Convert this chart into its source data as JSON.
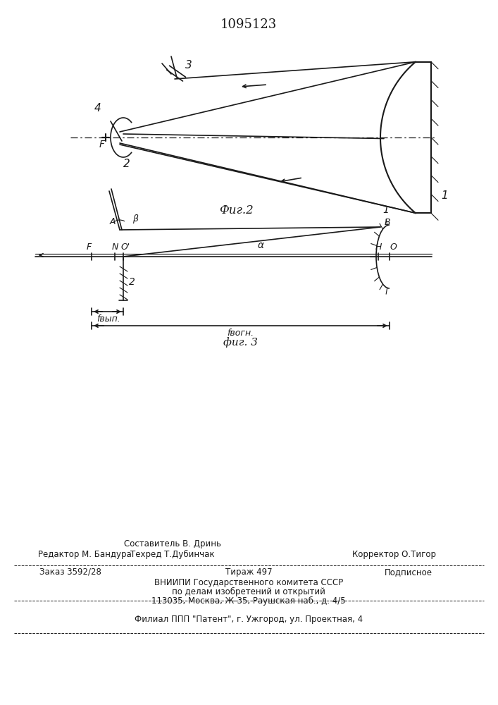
{
  "patent_number": "1095123",
  "background_color": "#ffffff",
  "line_color": "#1a1a1a",
  "fig2_label": "Фиг.2",
  "fig3_label": "фиг. 3",
  "footer": {
    "line1_left": "Редактор М. Бандура",
    "line1_mid1": "Составитель В. Дринь",
    "line1_mid2": "Техред Т.Дубинчак",
    "line1_right": "Корректор О.Тигор",
    "line2_left": "Заказ 3592/28",
    "line2_mid": "Тираж 497",
    "line2_right": "Подписное",
    "line3": "ВНИИПИ Государственного комитета СССР",
    "line4": "по делам изобретений и открытий",
    "line5": "113035, Москва, Ж-35, Раушская наб., д. 4/5",
    "line6": "Филиал ППП \"Патент\", г. Ужгород, ул. Проектная, 4"
  }
}
